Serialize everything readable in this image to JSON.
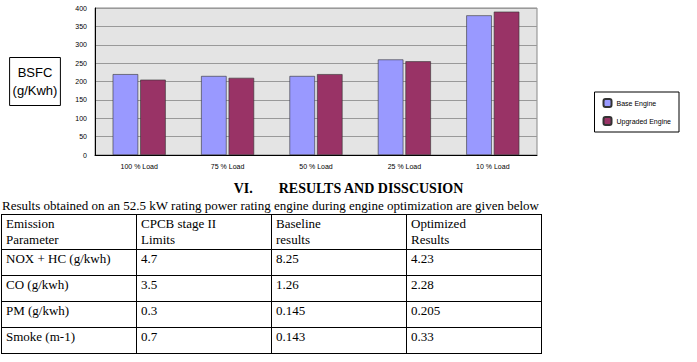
{
  "chart_data": {
    "type": "bar",
    "y_label": "BSFC\n(g/Kwh)",
    "categories": [
      "100 % Load",
      "75 % Load",
      "50 % Load",
      "25 % Load",
      "10 % Load"
    ],
    "series": [
      {
        "name": "Base Engine",
        "color": "#9999ff",
        "values": [
          220,
          215,
          215,
          260,
          380
        ]
      },
      {
        "name": "Upgraded Engine",
        "color": "#993366",
        "values": [
          205,
          210,
          220,
          255,
          390
        ]
      }
    ],
    "ylim": [
      0,
      400
    ],
    "yticks": [
      0,
      50,
      100,
      150,
      200,
      250,
      300,
      350,
      400
    ],
    "grid": true,
    "legend": "right",
    "data_labels": false
  },
  "heading": {
    "number": "VI.",
    "title": "RESULTS AND DISSCUSION"
  },
  "intro": "Results obtained on an 52.5 kW rating power rating engine during engine optimization are given below",
  "table": {
    "header": [
      "Emission\nParameter",
      "CPCB stage II\nLimits",
      "Baseline\nresults",
      "Optimized\nResults"
    ],
    "rows": [
      [
        "NOX + HC (g/kwh)",
        "4.7",
        "8.25",
        "4.23"
      ],
      [
        "CO (g/kwh)",
        "3.5",
        "1.26",
        "2.28"
      ],
      [
        "PM (g/kwh)",
        "0.3",
        "0.145",
        "0.205"
      ],
      [
        "Smoke (m-1)",
        "0.7",
        "0.143",
        "0.33"
      ]
    ]
  }
}
